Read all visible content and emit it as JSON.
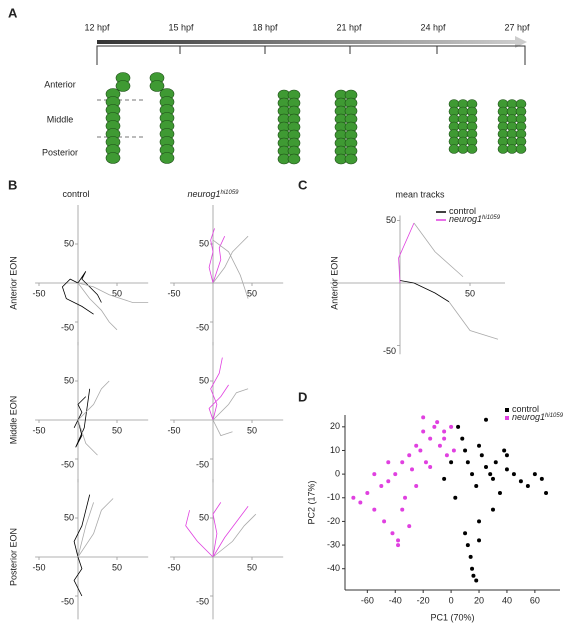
{
  "panel_labels": [
    "A",
    "B",
    "C",
    "D"
  ],
  "timeline": {
    "ticks": [
      "12 hpf",
      "15 hpf",
      "18 hpf",
      "21 hpf",
      "24 hpf",
      "27 hpf"
    ],
    "regions": [
      "Anterior",
      "Middle",
      "Posterior"
    ]
  },
  "panel_b": {
    "columns": [
      {
        "name": "control"
      },
      {
        "name": "neurog1",
        "name_sup": "hi1059"
      }
    ],
    "rows": [
      "Anterior EON",
      "Middle EON",
      "Posterior EON"
    ]
  },
  "chart_data": [
    {
      "type": "line",
      "xlim": [
        -55,
        90
      ],
      "ylim": [
        -80,
        100
      ],
      "xticks": [
        -50,
        50
      ],
      "yticks": [
        50,
        -50
      ],
      "series": [
        {
          "color": "#000000",
          "x": [
            0,
            -10,
            -20,
            -15,
            5,
            20
          ],
          "y": [
            0,
            5,
            -5,
            -20,
            -30,
            -40
          ]
        },
        {
          "color": "#000000",
          "x": [
            0,
            10,
            5,
            15,
            25,
            30
          ],
          "y": [
            0,
            15,
            5,
            -5,
            -15,
            -25
          ]
        },
        {
          "color": "#aaaaaa",
          "x": [
            0,
            20,
            40,
            55,
            70,
            90
          ],
          "y": [
            0,
            -5,
            -15,
            -20,
            -25,
            -25
          ]
        },
        {
          "color": "#aaaaaa",
          "x": [
            0,
            15,
            30,
            40,
            50
          ],
          "y": [
            0,
            -20,
            -35,
            -50,
            -60
          ]
        }
      ]
    },
    {
      "type": "line",
      "xlim": [
        -55,
        90
      ],
      "ylim": [
        -80,
        100
      ],
      "xticks": [
        -50,
        50
      ],
      "yticks": [
        50,
        -50
      ],
      "series": [
        {
          "color": "#e040e0",
          "x": [
            0,
            -5,
            0,
            -3,
            2
          ],
          "y": [
            0,
            20,
            40,
            55,
            70
          ]
        },
        {
          "color": "#e040e0",
          "x": [
            0,
            5,
            10,
            8,
            15
          ],
          "y": [
            0,
            15,
            30,
            45,
            60
          ]
        },
        {
          "color": "#aaaaaa",
          "x": [
            0,
            15,
            25,
            35,
            45
          ],
          "y": [
            0,
            20,
            40,
            50,
            60
          ]
        },
        {
          "color": "#aaaaaa",
          "x": [
            0,
            20,
            35,
            45
          ],
          "y": [
            55,
            40,
            10,
            -20
          ]
        }
      ]
    },
    {
      "type": "line",
      "xlim": [
        -55,
        90
      ],
      "ylim": [
        -80,
        100
      ],
      "xticks": [
        -50,
        50
      ],
      "yticks": [
        50,
        -50
      ],
      "series": [
        {
          "color": "#000000",
          "x": [
            0,
            -5,
            5,
            0,
            10
          ],
          "y": [
            0,
            -10,
            10,
            20,
            30
          ]
        },
        {
          "color": "#000000",
          "x": [
            0,
            5,
            -3,
            8,
            15
          ],
          "y": [
            0,
            -20,
            -35,
            -10,
            40
          ]
        },
        {
          "color": "#aaaaaa",
          "x": [
            0,
            20,
            30,
            40
          ],
          "y": [
            0,
            20,
            40,
            50
          ]
        },
        {
          "color": "#aaaaaa",
          "x": [
            0,
            10,
            25
          ],
          "y": [
            0,
            -30,
            -45
          ]
        }
      ]
    },
    {
      "type": "line",
      "xlim": [
        -55,
        90
      ],
      "ylim": [
        -80,
        100
      ],
      "xticks": [
        -50,
        50
      ],
      "yticks": [
        50,
        -50
      ],
      "series": [
        {
          "color": "#e040e0",
          "x": [
            0,
            5,
            -3,
            8,
            12
          ],
          "y": [
            0,
            20,
            40,
            60,
            80
          ]
        },
        {
          "color": "#e040e0",
          "x": [
            0,
            -5,
            10,
            20
          ],
          "y": [
            0,
            15,
            30,
            45
          ]
        },
        {
          "color": "#aaaaaa",
          "x": [
            0,
            20,
            30,
            45
          ],
          "y": [
            0,
            20,
            35,
            40
          ]
        },
        {
          "color": "#aaaaaa",
          "x": [
            0,
            10,
            25
          ],
          "y": [
            0,
            -20,
            -15
          ]
        }
      ]
    },
    {
      "type": "line",
      "xlim": [
        -55,
        90
      ],
      "ylim": [
        -80,
        100
      ],
      "xticks": [
        -50,
        50
      ],
      "yticks": [
        50,
        -50
      ],
      "series": [
        {
          "color": "#000000",
          "x": [
            0,
            -5,
            5,
            10,
            15
          ],
          "y": [
            0,
            20,
            40,
            60,
            80
          ]
        },
        {
          "color": "#000000",
          "x": [
            0,
            5,
            -5,
            5
          ],
          "y": [
            0,
            -15,
            -30,
            -50
          ]
        },
        {
          "color": "#aaaaaa",
          "x": [
            0,
            20,
            30,
            45
          ],
          "y": [
            0,
            30,
            60,
            75
          ]
        },
        {
          "color": "#aaaaaa",
          "x": [
            0,
            10,
            20
          ],
          "y": [
            0,
            40,
            70
          ]
        }
      ]
    },
    {
      "type": "line",
      "xlim": [
        -55,
        90
      ],
      "ylim": [
        -80,
        100
      ],
      "xticks": [
        -50,
        50
      ],
      "yticks": [
        50,
        -50
      ],
      "series": [
        {
          "color": "#e040e0",
          "x": [
            0,
            -20,
            -35,
            -30
          ],
          "y": [
            0,
            20,
            40,
            60
          ]
        },
        {
          "color": "#e040e0",
          "x": [
            0,
            15,
            30,
            45
          ],
          "y": [
            0,
            25,
            45,
            65
          ]
        },
        {
          "color": "#e040e0",
          "x": [
            0,
            5,
            0,
            10
          ],
          "y": [
            0,
            30,
            55,
            70
          ]
        },
        {
          "color": "#aaaaaa",
          "x": [
            0,
            25,
            40,
            55
          ],
          "y": [
            0,
            20,
            40,
            55
          ]
        }
      ]
    },
    {
      "type": "line",
      "title": "mean tracks",
      "ylabel": "Anterior EON",
      "xlim": [
        -50,
        75
      ],
      "ylim": [
        -57,
        54
      ],
      "xticks": [
        50
      ],
      "yticks": [
        50,
        -50
      ],
      "series": [
        {
          "name": "control",
          "color": "#000000",
          "x": [
            0,
            10,
            25,
            35
          ],
          "y": [
            2,
            0,
            -8,
            -15
          ]
        },
        {
          "name": "neurog1",
          "name_sup": "hi1059",
          "color": "#e040e0",
          "x": [
            0,
            -1,
            10
          ],
          "y": [
            0,
            20,
            48
          ]
        },
        {
          "color": "#aaaaaa",
          "x": [
            35,
            50,
            70
          ],
          "y": [
            -15,
            -38,
            -45
          ]
        },
        {
          "color": "#aaaaaa",
          "x": [
            10,
            25,
            45
          ],
          "y": [
            48,
            25,
            5
          ]
        }
      ]
    },
    {
      "type": "scatter",
      "xlabel": "PC1 (70%)",
      "ylabel": "PC2 (17%)",
      "xlim": [
        -76,
        78
      ],
      "ylim": [
        -49,
        25
      ],
      "xticks": [
        -60,
        -40,
        -20,
        0,
        20,
        40,
        60
      ],
      "yticks": [
        20,
        10,
        0,
        -10,
        -20,
        -30,
        -40
      ],
      "series": [
        {
          "name": "control",
          "color": "#000000",
          "x": [
            5,
            8,
            10,
            12,
            15,
            18,
            20,
            22,
            25,
            28,
            30,
            32,
            35,
            38,
            40,
            45,
            50,
            55,
            60,
            65,
            68,
            10,
            12,
            14,
            15,
            16,
            18,
            20,
            -5,
            0,
            3,
            25,
            30,
            20,
            40
          ],
          "y": [
            20,
            15,
            10,
            5,
            0,
            -5,
            12,
            8,
            3,
            0,
            -2,
            5,
            -8,
            10,
            2,
            0,
            -3,
            -5,
            0,
            -2,
            -8,
            -25,
            -30,
            -35,
            -40,
            -43,
            -45,
            -20,
            -2,
            5,
            -10,
            23,
            -15,
            -28,
            8
          ]
        },
        {
          "name": "neurog1",
          "name_sup": "hi1059",
          "color": "#e040e0",
          "x": [
            -70,
            -65,
            -60,
            -55,
            -50,
            -48,
            -45,
            -42,
            -40,
            -38,
            -35,
            -33,
            -30,
            -28,
            -25,
            -22,
            -20,
            -18,
            -15,
            -12,
            -10,
            -8,
            -5,
            -3,
            0,
            2,
            -38,
            -35,
            -30,
            -45,
            -55,
            -25,
            -15,
            -20,
            -5
          ],
          "y": [
            -10,
            -12,
            -8,
            -15,
            -5,
            -20,
            -3,
            -25,
            0,
            -28,
            5,
            -10,
            8,
            2,
            12,
            10,
            18,
            5,
            15,
            20,
            22,
            12,
            15,
            8,
            20,
            10,
            -30,
            -15,
            -22,
            5,
            0,
            -5,
            3,
            24,
            18
          ]
        }
      ]
    }
  ]
}
